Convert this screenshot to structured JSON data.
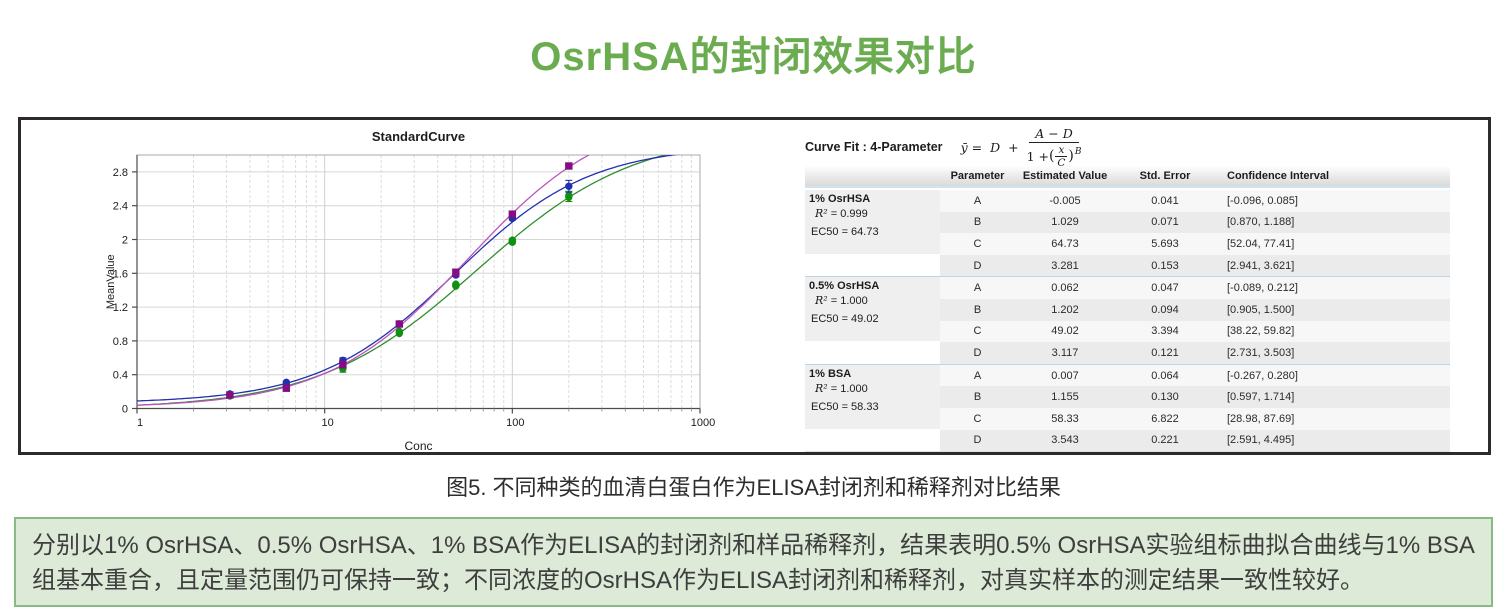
{
  "page": {
    "title": "OsrHSA的封闭效果对比",
    "caption": "图5. 不同种类的血清白蛋白作为ELISA封闭剂和稀释剂对比结果",
    "note": "分别以1% OsrHSA、0.5% OsrHSA、1% BSA作为ELISA的封闭剂和样品稀释剂，结果表明0.5% OsrHSA实验组标曲拟合曲线与1% BSA组基本重合，且定量范围仍可保持一致；不同浓度的OsrHSA作为ELISA封闭剂和稀释剂，对真实样本的测定结果一致性较好。"
  },
  "colors": {
    "title_green": "#6aac4f",
    "note_bg": "#dcead7",
    "note_border": "#87ba85",
    "panel_border": "#2e2a2b",
    "grid": "#d6d6d6",
    "axis": "#4d4d4d"
  },
  "chart_data": {
    "type": "line",
    "title": "StandardCurve",
    "xlabel": "Conc",
    "ylabel": "MeanValue",
    "x_scale": "log",
    "xlim": [
      1,
      1000
    ],
    "ylim": [
      0,
      2.96
    ],
    "grid": true,
    "x_ticks": [
      1,
      10,
      100,
      1000
    ],
    "x_tick_labels": [
      "1",
      "10",
      "100",
      "1000"
    ],
    "y_ticks": [
      0,
      0.4,
      0.8,
      1.2,
      1.6,
      2,
      2.4,
      2.8
    ],
    "y_tick_labels": [
      "0",
      "0.4",
      "0.8",
      "1.2",
      "1.6",
      "2",
      "2.4",
      "2.8"
    ],
    "x": [
      3.125,
      6.25,
      12.5,
      25,
      50,
      100,
      200
    ],
    "series": [
      {
        "name": "1% OsrHSA",
        "marker": "ellipse",
        "line_color": "#2f8f2f",
        "marker_color": "#119111",
        "fit": {
          "A": -0.005,
          "B": 1.029,
          "C": 64.73,
          "D": 3.281
        },
        "values": [
          0.16,
          0.28,
          0.48,
          0.9,
          1.46,
          1.98,
          2.51
        ],
        "errors": [
          0,
          0,
          0.05,
          0,
          0.02,
          0.03,
          0.06
        ]
      },
      {
        "name": "0.5% OsrHSA",
        "marker": "circle",
        "line_color": "#2230b0",
        "marker_color": "#2230b0",
        "fit": {
          "A": 0.062,
          "B": 1.202,
          "C": 49.02,
          "D": 3.117
        },
        "values": [
          0.17,
          0.31,
          0.57,
          1.0,
          1.58,
          2.25,
          2.63
        ],
        "errors": [
          0,
          0,
          0.03,
          0,
          0.02,
          0.02,
          0.07
        ]
      },
      {
        "name": "1% BSA",
        "marker": "square",
        "line_color": "#bb55bb",
        "marker_color": "#850c85",
        "fit": {
          "A": 0.007,
          "B": 1.155,
          "C": 58.33,
          "D": 3.543
        },
        "values": [
          0.16,
          0.24,
          0.52,
          1.0,
          1.61,
          2.3,
          2.87
        ],
        "errors": [
          0,
          0.02,
          0.04,
          0.02,
          0.04,
          0,
          0.03
        ]
      }
    ]
  },
  "table": {
    "curve_fit_label": "Curve Fit : 4-Parameter",
    "formula": {
      "lhs": "ȳ =",
      "d": "D",
      "plus": "+",
      "num": "A − D",
      "den_one_plus": "1 +",
      "x": "x",
      "c": "C",
      "exp": "B"
    },
    "columns": [
      "Parameter",
      "Estimated Value",
      "Std. Error",
      "Confidence Interval"
    ],
    "groups": [
      {
        "name": "1% OsrHSA",
        "r2_sym": "R²",
        "r2_val": "= 0.999",
        "ec50": "EC50 = 64.73",
        "rows": [
          {
            "param": "A",
            "est": "-0.005",
            "se": "0.041",
            "ci": "[-0.096, 0.085]"
          },
          {
            "param": "B",
            "est": "1.029",
            "se": "0.071",
            "ci": "[0.870, 1.188]"
          },
          {
            "param": "C",
            "est": "64.73",
            "se": "5.693",
            "ci": "[52.04, 77.41]"
          },
          {
            "param": "D",
            "est": "3.281",
            "se": "0.153",
            "ci": "[2.941, 3.621]"
          }
        ]
      },
      {
        "name": "0.5% OsrHSA",
        "r2_sym": "R²",
        "r2_val": "= 1.000",
        "ec50": "EC50 = 49.02",
        "rows": [
          {
            "param": "A",
            "est": "0.062",
            "se": "0.047",
            "ci": "[-0.089, 0.212]"
          },
          {
            "param": "B",
            "est": "1.202",
            "se": "0.094",
            "ci": "[0.905, 1.500]"
          },
          {
            "param": "C",
            "est": "49.02",
            "se": "3.394",
            "ci": "[38.22, 59.82]"
          },
          {
            "param": "D",
            "est": "3.117",
            "se": "0.121",
            "ci": "[2.731, 3.503]"
          }
        ]
      },
      {
        "name": "1% BSA",
        "r2_sym": "R²",
        "r2_val": "= 1.000",
        "ec50": "EC50 = 58.33",
        "rows": [
          {
            "param": "A",
            "est": "0.007",
            "se": "0.064",
            "ci": "[-0.267, 0.280]"
          },
          {
            "param": "B",
            "est": "1.155",
            "se": "0.130",
            "ci": "[0.597, 1.714]"
          },
          {
            "param": "C",
            "est": "58.33",
            "se": "6.822",
            "ci": "[28.98, 87.69]"
          },
          {
            "param": "D",
            "est": "3.543",
            "se": "0.221",
            "ci": "[2.591, 4.495]"
          }
        ]
      }
    ]
  }
}
